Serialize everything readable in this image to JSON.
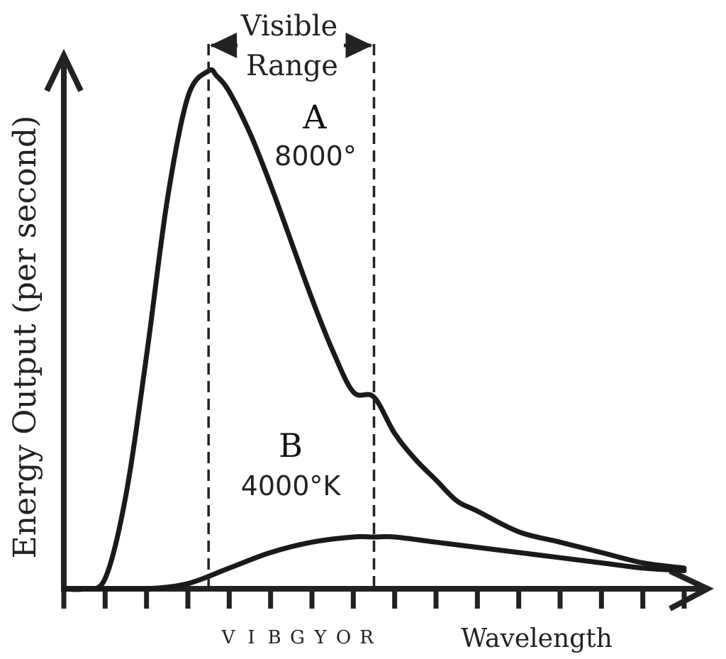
{
  "chart_data": {
    "type": "line",
    "ylabel": "Energy Output (per second)",
    "xlabel": "Wavelength",
    "spectrum_letters": [
      "V",
      "I",
      "B",
      "G",
      "Y",
      "O",
      "R"
    ],
    "visible_range_label": [
      "Visible",
      "Range"
    ],
    "x_range": [
      0,
      15
    ],
    "y_range": [
      0,
      1
    ],
    "visible_range": [
      3.5,
      7.5
    ],
    "series": [
      {
        "name": "A",
        "label_lines": [
          "A",
          "8000°"
        ],
        "x": [
          0,
          0.5,
          1.0,
          1.5,
          2.0,
          2.5,
          3.0,
          3.5,
          3.7,
          4.0,
          4.5,
          5.0,
          5.5,
          6.0,
          6.5,
          7.0,
          7.5,
          8.0,
          8.5,
          9.0,
          9.5,
          10.0,
          11.0,
          12.0,
          13.0,
          14.0,
          15.0
        ],
        "y": [
          0,
          0,
          0.02,
          0.18,
          0.45,
          0.75,
          0.95,
          1.0,
          0.99,
          0.96,
          0.88,
          0.78,
          0.67,
          0.56,
          0.46,
          0.38,
          0.37,
          0.3,
          0.25,
          0.21,
          0.17,
          0.15,
          0.11,
          0.09,
          0.07,
          0.05,
          0.04
        ]
      },
      {
        "name": "B",
        "label_lines": [
          "B",
          "4000°K"
        ],
        "x": [
          0,
          1.0,
          2.0,
          3.0,
          4.0,
          5.0,
          6.0,
          7.0,
          7.5,
          8.0,
          9.0,
          10.0,
          11.0,
          12.0,
          13.0,
          14.0,
          15.0
        ],
        "y": [
          0,
          0,
          0.0,
          0.01,
          0.04,
          0.07,
          0.09,
          0.1,
          0.1,
          0.1,
          0.09,
          0.08,
          0.07,
          0.06,
          0.05,
          0.04,
          0.035
        ]
      }
    ],
    "grid": false,
    "x_ticks": 15
  }
}
